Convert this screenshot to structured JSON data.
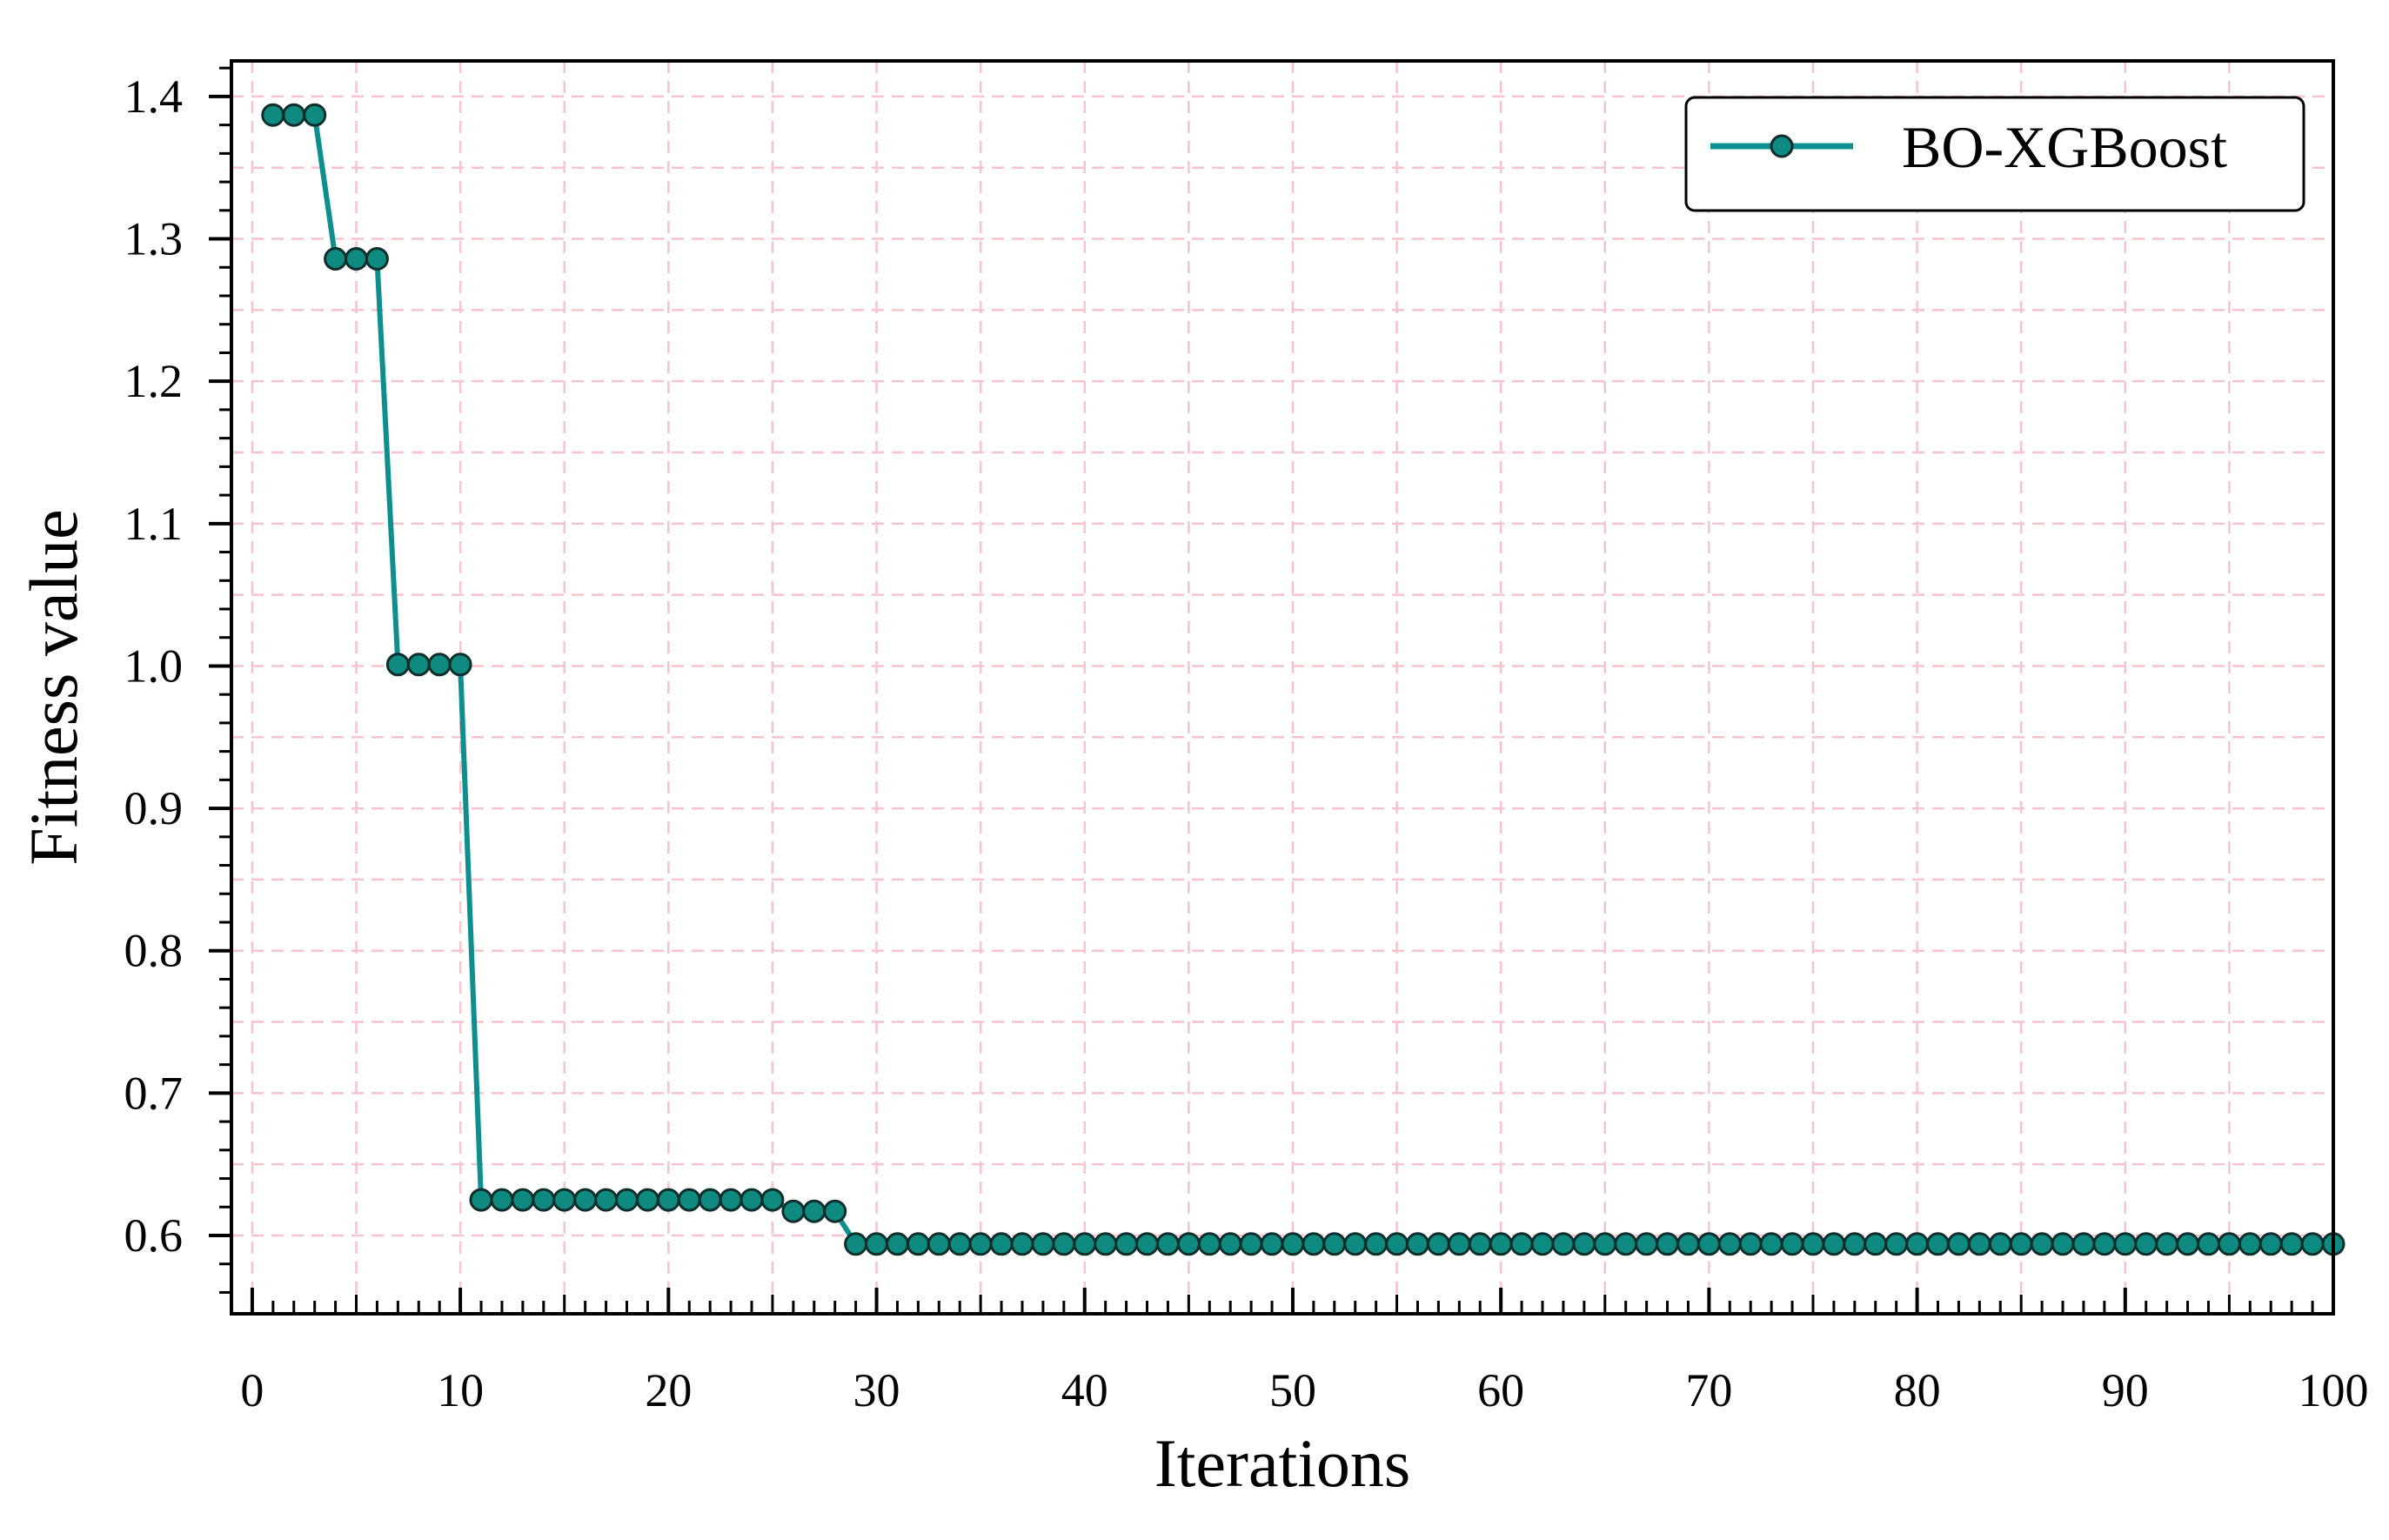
{
  "chart_data": {
    "type": "line",
    "title": "",
    "xlabel": "Iterations",
    "ylabel": "Fitness value",
    "xlim": [
      -1,
      100
    ],
    "ylim": [
      0.545,
      1.425
    ],
    "xticks": [
      0,
      10,
      20,
      30,
      40,
      50,
      60,
      70,
      80,
      90,
      100
    ],
    "yticks": [
      0.6,
      0.7,
      0.8,
      0.9,
      1.0,
      1.1,
      1.2,
      1.3,
      1.4
    ],
    "ytick_labels": [
      "0.6",
      "0.7",
      "0.8",
      "0.9",
      "1.0",
      "1.1",
      "1.2",
      "1.3",
      "1.4"
    ],
    "grid": true,
    "legend_position": "top-right",
    "series": [
      {
        "name": "BO-XGBoost",
        "color": "#0e8f8f",
        "marker_color": "#0e8a80",
        "marker": "circle",
        "segments": [
          {
            "x_from": 1,
            "x_to": 3,
            "y": 1.387
          },
          {
            "x_from": 4,
            "x_to": 6,
            "y": 1.286
          },
          {
            "x_from": 7,
            "x_to": 10,
            "y": 1.001
          },
          {
            "x_from": 11,
            "x_to": 25,
            "y": 0.625
          },
          {
            "x_from": 26,
            "x_to": 28,
            "y": 0.617
          },
          {
            "x_from": 29,
            "x_to": 100,
            "y": 0.594
          }
        ]
      }
    ]
  },
  "colors": {
    "grid": "#f7c3cc",
    "axis": "#000000",
    "line": "#0e8f8f",
    "marker_fill": "#0e8a80",
    "marker_edge": "#0d2e2b"
  }
}
